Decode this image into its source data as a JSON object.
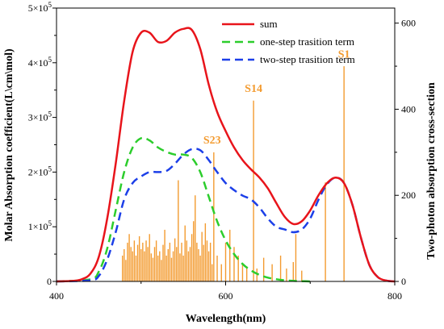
{
  "chart_data": {
    "type": "line",
    "x_axis": {
      "label": "Wavelength(nm)",
      "range": [
        400,
        800
      ],
      "ticks": [
        400,
        600,
        800
      ]
    },
    "y_axis_left": {
      "label": "Molar Absorption coefficient(L\\cm\\mol)",
      "range": [
        0,
        500000
      ],
      "ticks": [
        {
          "value": 0,
          "base": "0",
          "exp": ""
        },
        {
          "value": 100000,
          "base": "1×10",
          "exp": "5"
        },
        {
          "value": 200000,
          "base": "2×10",
          "exp": "5"
        },
        {
          "value": 300000,
          "base": "3×10",
          "exp": "5"
        },
        {
          "value": 400000,
          "base": "4×10",
          "exp": "5"
        },
        {
          "value": 500000,
          "base": "5×10",
          "exp": "5"
        }
      ]
    },
    "y_axis_right": {
      "label": "Two-photon absorption cross-section",
      "range": [
        0,
        635
      ],
      "ticks": [
        0,
        200,
        400,
        600
      ],
      "color": "#f39b30"
    },
    "legend": {
      "position": "top-right"
    },
    "series": [
      {
        "name": "sum",
        "style": "solid",
        "color": "#e8141b",
        "axis": "left",
        "x": [
          400,
          420,
          430,
          440,
          450,
          460,
          470,
          480,
          490,
          500,
          510,
          520,
          530,
          540,
          550,
          560,
          570,
          580,
          590,
          600,
          610,
          620,
          630,
          640,
          650,
          660,
          670,
          680,
          690,
          700,
          710,
          720,
          730,
          740,
          750,
          760,
          770,
          780,
          790,
          800
        ],
        "y": [
          0,
          1000,
          4000,
          14000,
          45000,
          115000,
          215000,
          330000,
          420000,
          455000,
          455000,
          438000,
          440000,
          455000,
          462000,
          460000,
          425000,
          360000,
          310000,
          275000,
          245000,
          222000,
          205000,
          190000,
          170000,
          143000,
          118000,
          105000,
          110000,
          130000,
          158000,
          180000,
          190000,
          180000,
          140000,
          80000,
          30000,
          8000,
          1500,
          0
        ]
      },
      {
        "name": "one-step trasition term",
        "style": "dashed",
        "color": "#2ccd2c",
        "axis": "left",
        "x": [
          400,
          440,
          450,
          460,
          470,
          480,
          490,
          500,
          510,
          520,
          530,
          540,
          550,
          560,
          570,
          580,
          590,
          600,
          610,
          620,
          630,
          640,
          650,
          660,
          670,
          680,
          690,
          700
        ],
        "y": [
          0,
          4000,
          18000,
          60000,
          130000,
          200000,
          245000,
          262000,
          258000,
          245000,
          237000,
          232000,
          232000,
          226000,
          200000,
          155000,
          110000,
          75000,
          50000,
          32000,
          20000,
          12000,
          7000,
          4000,
          2000,
          1000,
          500,
          0
        ]
      },
      {
        "name": "two-step trasition term",
        "style": "dashed",
        "color": "#1c3fe8",
        "axis": "left",
        "x": [
          400,
          440,
          450,
          460,
          470,
          480,
          490,
          500,
          510,
          520,
          530,
          540,
          550,
          560,
          570,
          580,
          590,
          600,
          610,
          620,
          630,
          640,
          650,
          660,
          670,
          680,
          690,
          700,
          710,
          720,
          730,
          740,
          750,
          760,
          770,
          780,
          790,
          800
        ],
        "y": [
          0,
          2000,
          10000,
          40000,
          90000,
          150000,
          180000,
          192000,
          200000,
          200000,
          202000,
          215000,
          232000,
          242000,
          240000,
          222000,
          200000,
          180000,
          167000,
          157000,
          150000,
          135000,
          115000,
          100000,
          95000,
          90000,
          95000,
          115000,
          150000,
          178000,
          190000,
          180000,
          140000,
          80000,
          30000,
          8000,
          1500,
          0
        ]
      }
    ],
    "stick_spectrum": {
      "name": "Two-photon absorption cross-section",
      "color": "#f39b30",
      "axis": "right",
      "x": [
        478,
        480,
        482,
        484,
        486,
        488,
        490,
        492,
        494,
        496,
        498,
        500,
        502,
        504,
        506,
        508,
        510,
        512,
        514,
        516,
        518,
        520,
        522,
        524,
        526,
        528,
        530,
        532,
        534,
        536,
        538,
        540,
        542,
        544,
        546,
        548,
        550,
        552,
        554,
        556,
        558,
        560,
        562,
        564,
        566,
        568,
        570,
        572,
        574,
        576,
        578,
        580,
        582,
        584,
        586,
        590,
        595,
        600,
        605,
        610,
        615,
        620,
        625,
        633,
        637,
        645,
        655,
        665,
        672,
        680,
        683,
        690,
        718,
        740
      ],
      "y": [
        60,
        75,
        50,
        90,
        110,
        80,
        70,
        95,
        60,
        85,
        105,
        75,
        90,
        70,
        95,
        80,
        110,
        65,
        55,
        80,
        95,
        60,
        70,
        50,
        85,
        120,
        60,
        75,
        90,
        55,
        70,
        100,
        80,
        235,
        65,
        90,
        60,
        130,
        95,
        70,
        80,
        110,
        140,
        200,
        90,
        75,
        60,
        115,
        85,
        135,
        95,
        70,
        90,
        40,
        300,
        60,
        40,
        90,
        120,
        80,
        60,
        40,
        35,
        420,
        30,
        55,
        40,
        60,
        30,
        45,
        110,
        25,
        230,
        500
      ]
    },
    "annotations": [
      {
        "text": "S23",
        "x": 584,
        "y_right": 320
      },
      {
        "text": "S14",
        "x": 633,
        "y_right": 440
      },
      {
        "text": "S1",
        "x": 740,
        "y_right": 520
      }
    ]
  }
}
